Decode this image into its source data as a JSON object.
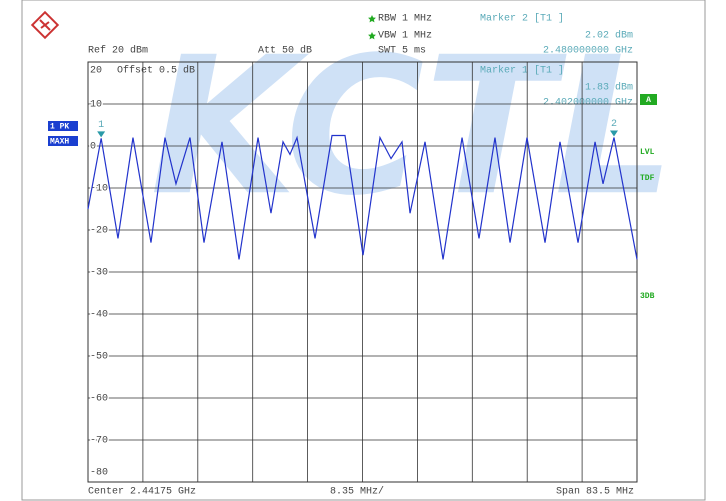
{
  "chart_data": {
    "type": "line",
    "watermark": "KCTL",
    "settings": {
      "rbw": "RBW 1 MHz",
      "vbw": "VBW 1 MHz",
      "swt": "SWT 5 ms",
      "ref": "Ref 20 dBm",
      "att": "Att 50 dB",
      "offset": "Offset 0.5 dB"
    },
    "markers": [
      {
        "name": "1",
        "title": "Marker 1 [T1 ]",
        "level": "1.83 dBm",
        "freq": "2.402000000 GHz",
        "x": 2.402,
        "value": 1.83
      },
      {
        "name": "2",
        "title": "Marker 2 [T1 ]",
        "level": "2.02 dBm",
        "freq": "2.480000000 GHz",
        "x": 2.48,
        "value": 2.02
      }
    ],
    "side_left": [
      "1 PK",
      "MAXH"
    ],
    "side_right": [
      "A",
      "LVL",
      "TDF",
      "3DB"
    ],
    "footer": {
      "center": "Center 2.44175 GHz",
      "div": "8.35 MHz/",
      "span": "Span 83.5 MHz"
    },
    "xlim": [
      2.4,
      2.4835
    ],
    "ylim": [
      -80,
      20
    ],
    "yticks": [
      20,
      10,
      0,
      -10,
      -20,
      -30,
      -40,
      -50,
      -60,
      -70,
      -80
    ],
    "grid": true,
    "series": [
      {
        "name": "1 PK MAXH",
        "color": "#2233cc",
        "x": [
          2.4,
          2.402,
          2.40456,
          2.40684,
          2.40958,
          2.41171,
          2.41338,
          2.41551,
          2.41764,
          2.42038,
          2.42297,
          2.42586,
          2.42783,
          2.42966,
          2.43072,
          2.43179,
          2.43453,
          2.43711,
          2.43909,
          2.44183,
          2.44441,
          2.44609,
          2.44776,
          2.44898,
          2.45126,
          2.454,
          2.45689,
          2.45947,
          2.4619,
          2.46419,
          2.46677,
          2.46951,
          2.47179,
          2.47453,
          2.47712,
          2.47833,
          2.48,
          2.4835
        ],
        "values": [
          -15,
          1.83,
          -22,
          2,
          -23,
          2,
          -9,
          2,
          -23,
          1,
          -27,
          2,
          -16,
          1,
          -2,
          2,
          -22,
          2.5,
          2.5,
          -26,
          2,
          -3,
          1,
          -16,
          1,
          -27,
          2,
          -22,
          2,
          -23,
          2,
          -23,
          1,
          -23,
          1,
          -9,
          2.02,
          -27
        ]
      }
    ]
  }
}
